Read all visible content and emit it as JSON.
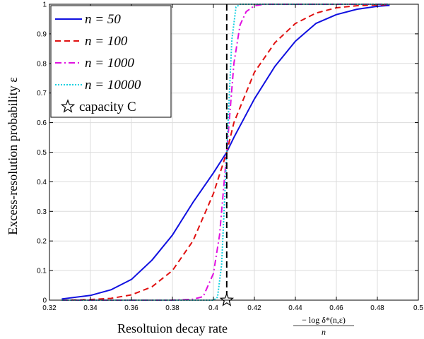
{
  "chart_data": {
    "type": "line",
    "xlabel": "Resoltuion decay rate",
    "xlabel_fraction": {
      "numerator": "− log δ*(n,ε)",
      "denominator": "n"
    },
    "ylabel": "Excess-resolution probability ε",
    "xlim": [
      0.32,
      0.5
    ],
    "ylim": [
      0,
      1
    ],
    "xticks": [
      "0.32",
      "0.34",
      "0.36",
      "0.38",
      "0.4",
      "0.42",
      "0.44",
      "0.46",
      "0.48",
      "0.5"
    ],
    "yticks": [
      "0",
      "0.1",
      "0.2",
      "0.3",
      "0.4",
      "0.5",
      "0.6",
      "0.7",
      "0.8",
      "0.9",
      "1"
    ],
    "grid": true,
    "legend_position": "top-left",
    "capacity": {
      "x": 0.4065,
      "y": 0,
      "label": "capacity C"
    },
    "vline_x": 0.4065,
    "series": [
      {
        "name": "n = 50",
        "color": "#1010e0",
        "dash": "solid",
        "x": [
          0.326,
          0.34,
          0.35,
          0.36,
          0.37,
          0.38,
          0.39,
          0.4,
          0.4065,
          0.41,
          0.42,
          0.43,
          0.44,
          0.45,
          0.46,
          0.47,
          0.48,
          0.486
        ],
        "y": [
          0.004,
          0.016,
          0.035,
          0.07,
          0.135,
          0.22,
          0.33,
          0.43,
          0.5,
          0.55,
          0.68,
          0.79,
          0.875,
          0.935,
          0.965,
          0.983,
          0.993,
          0.996
        ]
      },
      {
        "name": "n = 100",
        "color": "#e01010",
        "dash": "dashed",
        "x": [
          0.326,
          0.34,
          0.35,
          0.36,
          0.37,
          0.38,
          0.39,
          0.4,
          0.4065,
          0.41,
          0.42,
          0.43,
          0.44,
          0.45,
          0.46,
          0.47,
          0.486
        ],
        "y": [
          0.0,
          0.002,
          0.006,
          0.018,
          0.045,
          0.1,
          0.2,
          0.36,
          0.5,
          0.6,
          0.77,
          0.87,
          0.935,
          0.97,
          0.988,
          0.995,
          0.999
        ]
      },
      {
        "name": "n = 1000",
        "color": "#e010e0",
        "dash": "dashdot",
        "x": [
          0.326,
          0.38,
          0.39,
          0.395,
          0.4,
          0.403,
          0.4065,
          0.41,
          0.413,
          0.416,
          0.42,
          0.425,
          0.43,
          0.486
        ],
        "y": [
          0.0,
          0.0,
          0.003,
          0.012,
          0.09,
          0.22,
          0.5,
          0.8,
          0.93,
          0.975,
          0.995,
          1.0,
          1.0,
          1.0
        ]
      },
      {
        "name": "n = 10000",
        "color": "#10d0e0",
        "dash": "dotted",
        "x": [
          0.326,
          0.4,
          0.402,
          0.404,
          0.405,
          0.4065,
          0.408,
          0.409,
          0.411,
          0.413,
          0.486
        ],
        "y": [
          0.0,
          0.0,
          0.01,
          0.12,
          0.27,
          0.5,
          0.73,
          0.88,
          0.99,
          1.0,
          1.0
        ]
      }
    ]
  }
}
